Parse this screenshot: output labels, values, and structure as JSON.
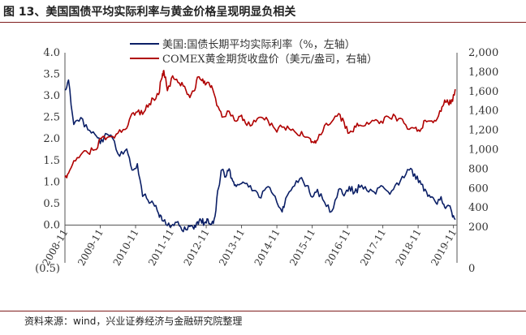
{
  "figure": {
    "title": "图 13、美国国债平均实际利率与黄金价格呈现明显负相关",
    "source": "资料来源：wind，兴业证券经济与金融研究院整理"
  },
  "chart_data": {
    "type": "line",
    "title": "图 13、美国国债平均实际利率与黄金价格呈现明显负相关",
    "legend_position": "top-center",
    "grid": false,
    "x": [
      "2008-11",
      "2009-11",
      "2010-11",
      "2011-11",
      "2012-11",
      "2013-11",
      "2014-11",
      "2015-11",
      "2016-11",
      "2017-11",
      "2018-11",
      "2019-11"
    ],
    "y_left": {
      "ylim": [
        -0.5,
        4.0
      ],
      "ticks": [
        "(0.5)",
        "0.0",
        "0.5",
        "1.0",
        "1.5",
        "2.0",
        "2.5",
        "3.0",
        "3.5",
        "4.0"
      ],
      "tick_values": [
        -0.5,
        0,
        0.5,
        1.0,
        1.5,
        2.0,
        2.5,
        3.0,
        3.5,
        4.0
      ]
    },
    "y_right": {
      "ylim": [
        0,
        2000
      ],
      "ticks": [
        "0",
        "200",
        "400",
        "600",
        "800",
        "1,000",
        "1,200",
        "1,400",
        "1,600",
        "1,800",
        "2,000"
      ],
      "tick_values": [
        0,
        200,
        400,
        600,
        800,
        1000,
        1200,
        1400,
        1600,
        1800,
        2000
      ]
    },
    "series": [
      {
        "name": "美国:国债长期平均实际利率（%，左轴）",
        "axis": "left",
        "color": "#0b1f66",
        "x": [
          2008.85,
          2008.95,
          2009.1,
          2009.3,
          2009.5,
          2009.7,
          2009.85,
          2010.0,
          2010.2,
          2010.4,
          2010.6,
          2010.75,
          2010.9,
          2011.05,
          2011.2,
          2011.35,
          2011.5,
          2011.6,
          2011.75,
          2011.9,
          2012.05,
          2012.2,
          2012.35,
          2012.5,
          2012.6,
          2012.7,
          2012.8,
          2012.9,
          2013.0,
          2013.1,
          2013.2,
          2013.3,
          2013.4,
          2013.5,
          2013.6,
          2013.7,
          2013.85,
          2014.0,
          2014.2,
          2014.4,
          2014.6,
          2014.8,
          2015.0,
          2015.1,
          2015.3,
          2015.5,
          2015.7,
          2015.85,
          2016.0,
          2016.2,
          2016.4,
          2016.6,
          2016.75,
          2016.9,
          2017.05,
          2017.2,
          2017.4,
          2017.6,
          2017.8,
          2018.0,
          2018.2,
          2018.4,
          2018.6,
          2018.75,
          2018.9,
          2019.05,
          2019.2,
          2019.35,
          2019.5,
          2019.6,
          2019.7,
          2019.8,
          2019.9
        ],
        "y": [
          3.1,
          3.4,
          2.3,
          2.5,
          2.2,
          2.1,
          1.9,
          2.1,
          2.0,
          1.6,
          1.8,
          1.3,
          1.4,
          0.7,
          0.6,
          0.5,
          0.3,
          0.1,
          0.0,
          0.0,
          0.1,
          -0.15,
          0.0,
          -0.1,
          0.05,
          0.1,
          0.05,
          0.1,
          0.0,
          0.2,
          0.9,
          1.3,
          1.1,
          1.3,
          1.0,
          0.9,
          1.0,
          1.0,
          0.8,
          0.65,
          0.9,
          0.7,
          0.3,
          0.6,
          0.9,
          1.1,
          0.9,
          0.65,
          0.8,
          0.5,
          0.3,
          0.8,
          0.7,
          0.9,
          0.75,
          0.9,
          0.8,
          0.75,
          0.9,
          0.75,
          0.9,
          1.1,
          1.3,
          1.15,
          1.0,
          0.8,
          0.65,
          0.5,
          0.65,
          0.4,
          0.45,
          0.3,
          0.1
        ]
      },
      {
        "name": "COMEX黄金期货收盘价（美元/盎司，右轴）",
        "axis": "right",
        "color": "#b00000",
        "x": [
          2008.85,
          2008.95,
          2009.1,
          2009.3,
          2009.5,
          2009.7,
          2009.85,
          2010.0,
          2010.2,
          2010.4,
          2010.6,
          2010.75,
          2010.9,
          2011.05,
          2011.2,
          2011.35,
          2011.5,
          2011.6,
          2011.65,
          2011.75,
          2011.9,
          2012.05,
          2012.2,
          2012.35,
          2012.5,
          2012.6,
          2012.7,
          2012.8,
          2012.9,
          2013.0,
          2013.15,
          2013.3,
          2013.5,
          2013.7,
          2013.85,
          2014.0,
          2014.2,
          2014.4,
          2014.6,
          2014.8,
          2015.0,
          2015.2,
          2015.4,
          2015.6,
          2015.8,
          2015.9,
          2016.0,
          2016.2,
          2016.4,
          2016.6,
          2016.75,
          2016.9,
          2017.05,
          2017.2,
          2017.4,
          2017.6,
          2017.8,
          2018.0,
          2018.2,
          2018.4,
          2018.6,
          2018.75,
          2018.9,
          2019.05,
          2019.2,
          2019.35,
          2019.5,
          2019.6,
          2019.7,
          2019.8,
          2019.9
        ],
        "y": [
          720,
          760,
          900,
          950,
          970,
          1000,
          1100,
          1110,
          1130,
          1200,
          1230,
          1360,
          1380,
          1370,
          1450,
          1520,
          1580,
          1750,
          1820,
          1620,
          1750,
          1700,
          1650,
          1560,
          1600,
          1750,
          1720,
          1700,
          1680,
          1660,
          1450,
          1330,
          1390,
          1300,
          1350,
          1250,
          1300,
          1330,
          1300,
          1200,
          1230,
          1210,
          1180,
          1150,
          1100,
          1060,
          1110,
          1250,
          1300,
          1360,
          1280,
          1170,
          1230,
          1260,
          1280,
          1300,
          1280,
          1340,
          1330,
          1300,
          1200,
          1210,
          1200,
          1290,
          1300,
          1300,
          1400,
          1500,
          1480,
          1500,
          1610
        ]
      }
    ]
  }
}
